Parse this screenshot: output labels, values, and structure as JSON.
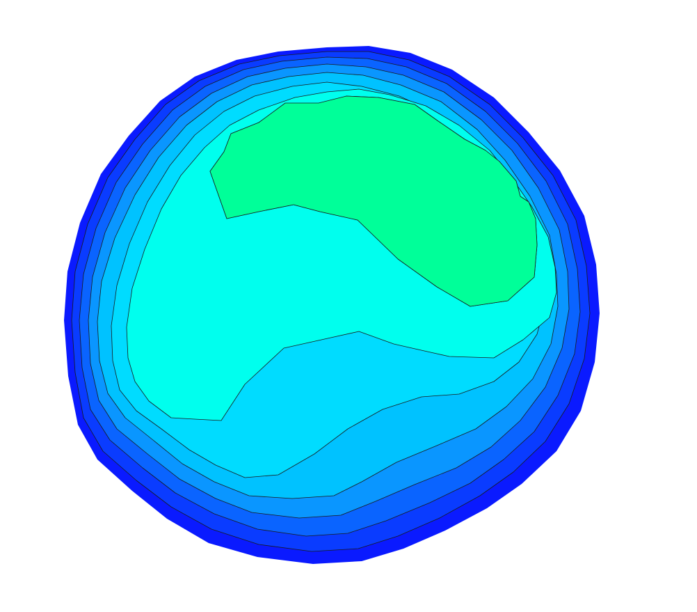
{
  "figure": {
    "type": "filled-contour",
    "colors": {
      "background": "#ffffff",
      "contour_line": "#1a1a1a",
      "levels": [
        "#0a1aff",
        "#0a3cff",
        "#0a64ff",
        "#0a96ff",
        "#00c2ff",
        "#00dcff",
        "#00ffee",
        "#00ffcc",
        "#00ff99"
      ]
    },
    "band_count": 9,
    "legend": "none",
    "axes": "none",
    "grid": false
  }
}
